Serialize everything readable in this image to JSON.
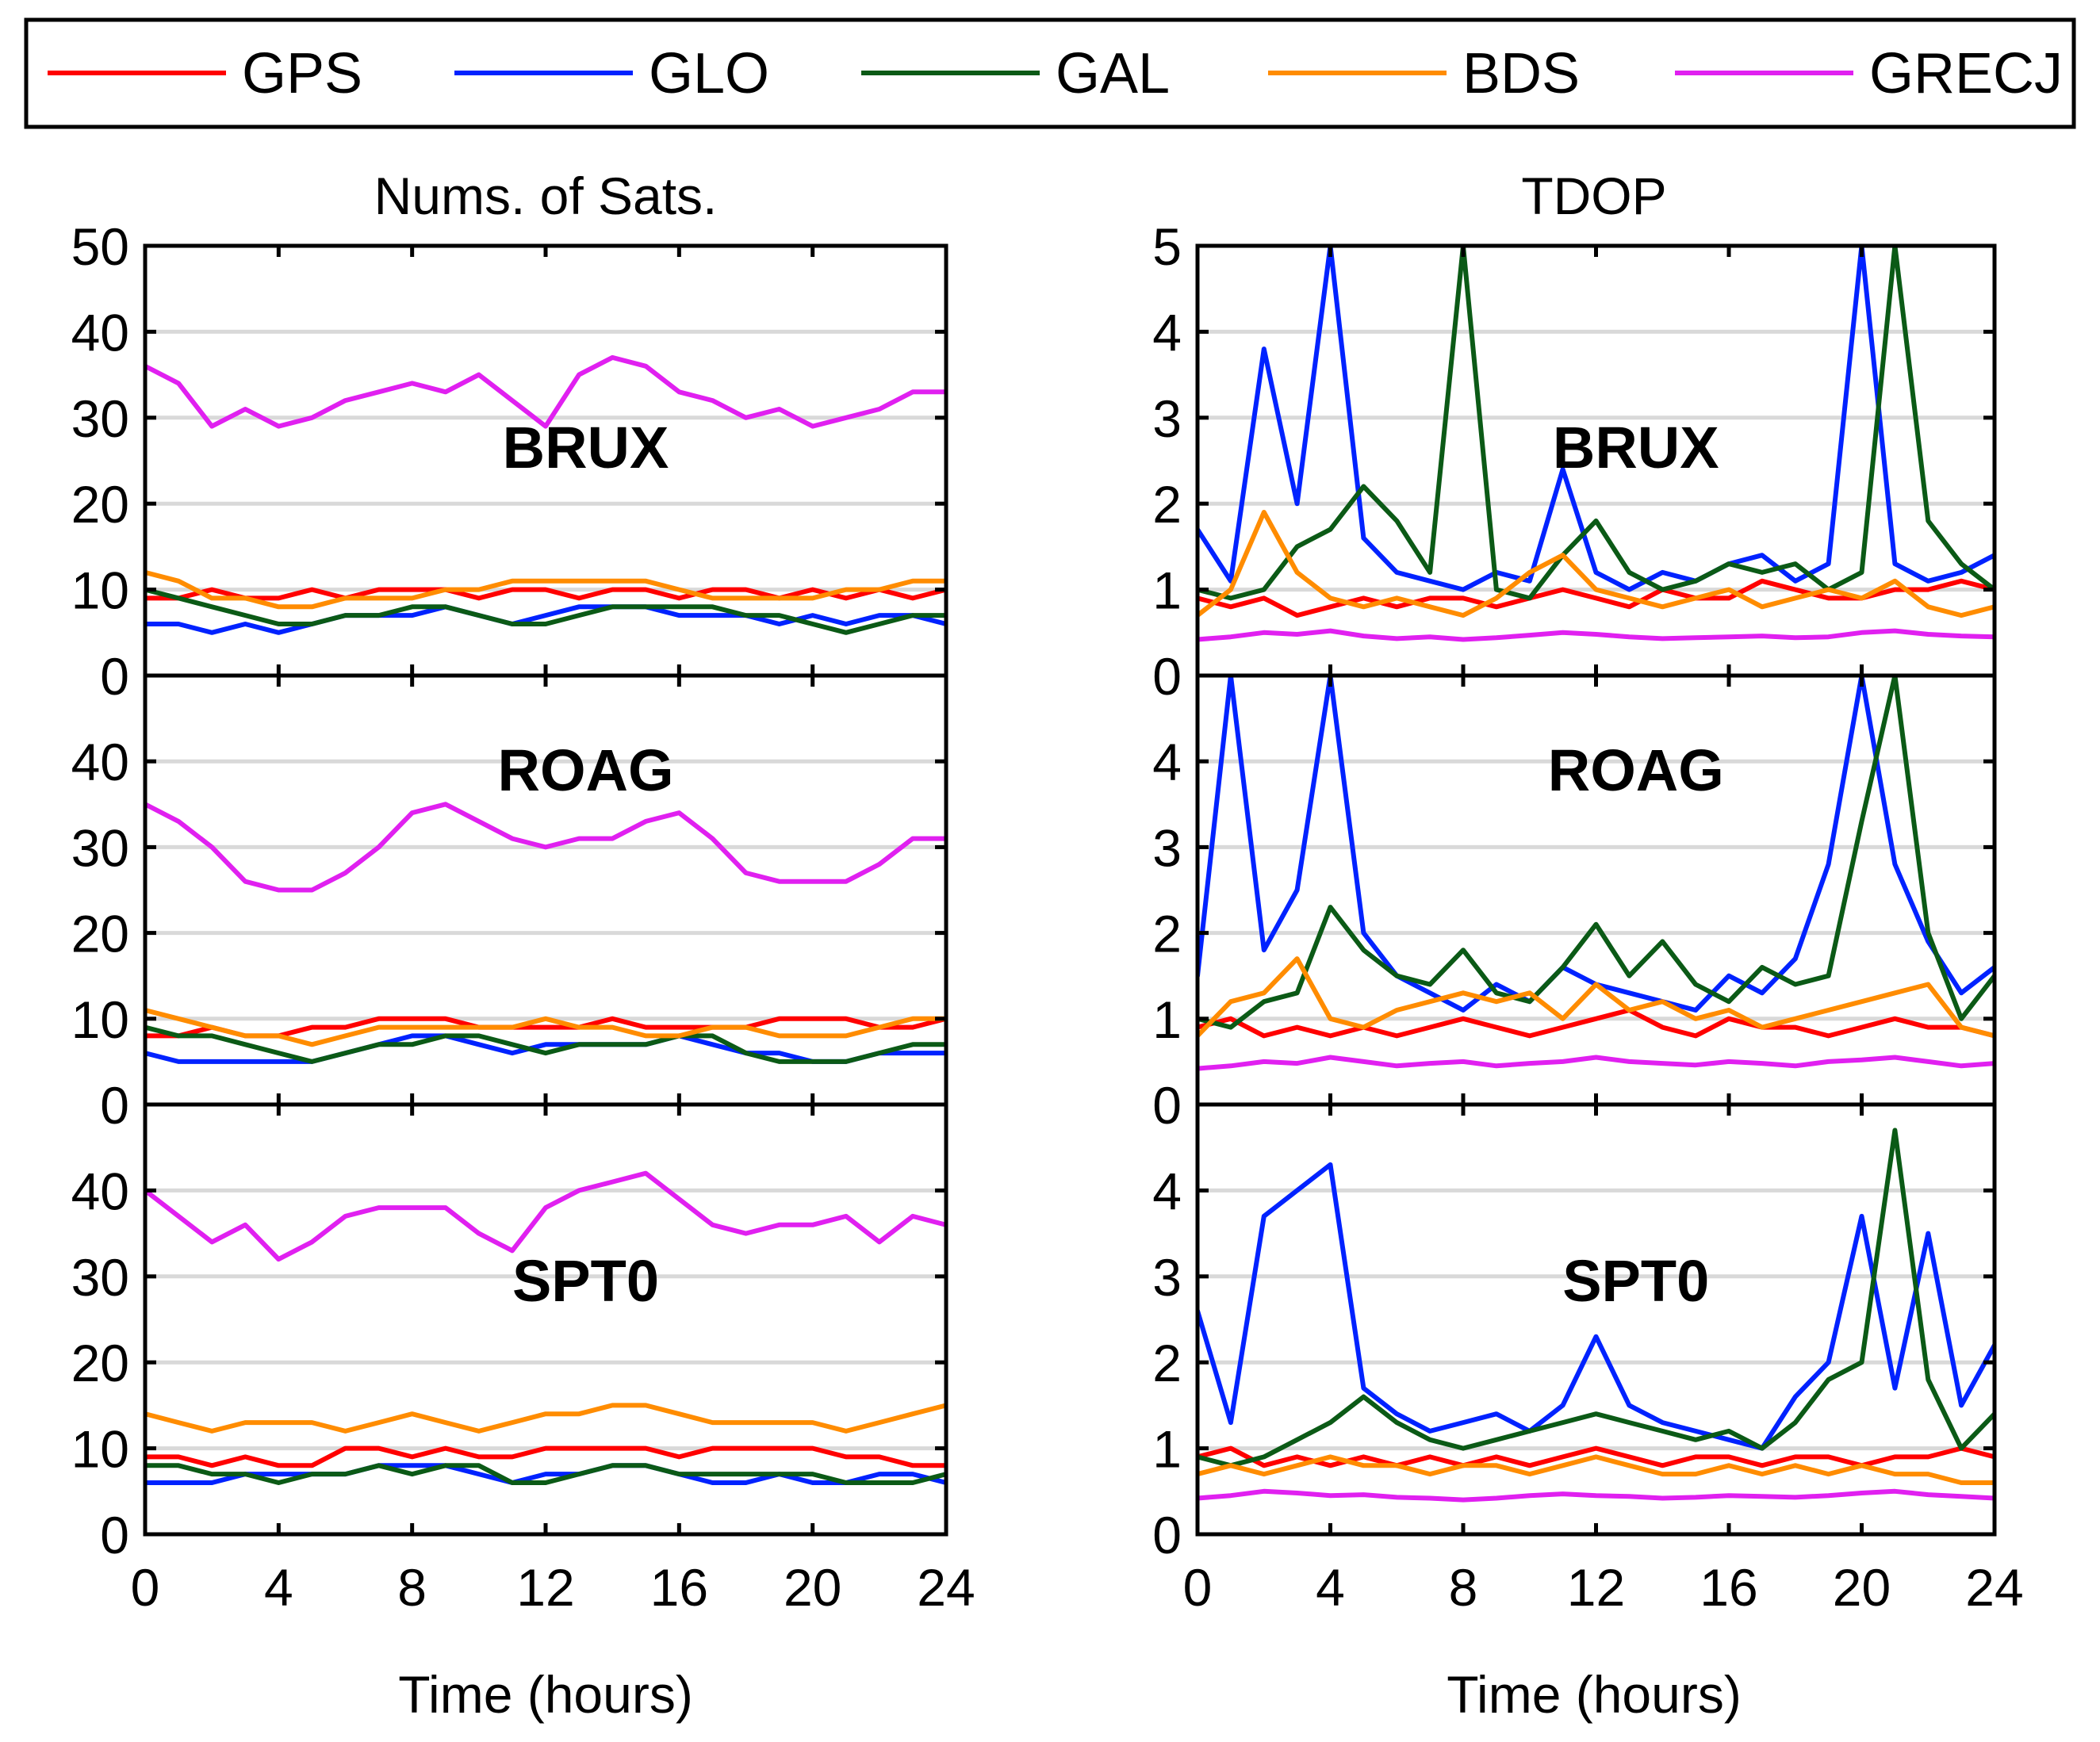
{
  "legend": [
    {
      "name": "GPS",
      "color": "#ff0000"
    },
    {
      "name": "GLO",
      "color": "#0022ff"
    },
    {
      "name": "GAL",
      "color": "#0b5a16"
    },
    {
      "name": "BDS",
      "color": "#ff8c00"
    },
    {
      "name": "GRECJ",
      "color": "#e020f0"
    }
  ],
  "columns": {
    "left_title": "Nums. of Sats.",
    "right_title": "TDOP",
    "xlabel": "Time (hours)"
  },
  "chart_data": [
    {
      "type": "line",
      "title": "Nums. of Sats.",
      "station": "BRUX",
      "xlabel": "",
      "ylabel": "",
      "xlim": [
        0,
        24
      ],
      "ylim": [
        0,
        50
      ],
      "xticks": [
        0,
        4,
        8,
        12,
        16,
        20,
        24
      ],
      "yticks": [
        0,
        10,
        20,
        30,
        40,
        50
      ],
      "x": [
        0,
        1,
        2,
        3,
        4,
        5,
        6,
        7,
        8,
        9,
        10,
        11,
        12,
        13,
        14,
        15,
        16,
        17,
        18,
        19,
        20,
        21,
        22,
        23,
        24
      ],
      "series": [
        {
          "name": "GPS",
          "values": [
            9,
            9,
            10,
            9,
            9,
            10,
            9,
            10,
            10,
            10,
            9,
            10,
            10,
            9,
            10,
            10,
            9,
            10,
            10,
            9,
            10,
            9,
            10,
            9,
            10
          ]
        },
        {
          "name": "GLO",
          "values": [
            6,
            6,
            5,
            6,
            5,
            6,
            7,
            7,
            7,
            8,
            7,
            6,
            7,
            8,
            8,
            8,
            7,
            7,
            7,
            6,
            7,
            6,
            7,
            7,
            6
          ]
        },
        {
          "name": "GAL",
          "values": [
            10,
            9,
            8,
            7,
            6,
            6,
            7,
            7,
            8,
            8,
            7,
            6,
            6,
            7,
            8,
            8,
            8,
            8,
            7,
            7,
            6,
            5,
            6,
            7,
            7
          ]
        },
        {
          "name": "BDS",
          "values": [
            12,
            11,
            9,
            9,
            8,
            8,
            9,
            9,
            9,
            10,
            10,
            11,
            11,
            11,
            11,
            11,
            10,
            9,
            9,
            9,
            9,
            10,
            10,
            11,
            11
          ]
        },
        {
          "name": "GRECJ",
          "values": [
            36,
            34,
            29,
            31,
            29,
            30,
            32,
            33,
            34,
            33,
            35,
            32,
            29,
            35,
            37,
            36,
            33,
            32,
            30,
            31,
            29,
            30,
            31,
            33,
            33
          ]
        }
      ]
    },
    {
      "type": "line",
      "title": "Nums. of Sats.",
      "station": "ROAG",
      "xlabel": "",
      "ylabel": "",
      "xlim": [
        0,
        24
      ],
      "ylim": [
        0,
        50
      ],
      "xticks": [
        0,
        4,
        8,
        12,
        16,
        20,
        24
      ],
      "yticks": [
        0,
        10,
        20,
        30,
        40
      ],
      "x": [
        0,
        1,
        2,
        3,
        4,
        5,
        6,
        7,
        8,
        9,
        10,
        11,
        12,
        13,
        14,
        15,
        16,
        17,
        18,
        19,
        20,
        21,
        22,
        23,
        24
      ],
      "series": [
        {
          "name": "GPS",
          "values": [
            8,
            8,
            9,
            8,
            8,
            9,
            9,
            10,
            10,
            10,
            9,
            9,
            9,
            9,
            10,
            9,
            9,
            9,
            9,
            10,
            10,
            10,
            9,
            9,
            10
          ]
        },
        {
          "name": "GLO",
          "values": [
            6,
            5,
            5,
            5,
            5,
            5,
            6,
            7,
            8,
            8,
            7,
            6,
            7,
            7,
            7,
            7,
            8,
            7,
            6,
            6,
            5,
            5,
            6,
            6,
            6
          ]
        },
        {
          "name": "GAL",
          "values": [
            9,
            8,
            8,
            7,
            6,
            5,
            6,
            7,
            7,
            8,
            8,
            7,
            6,
            7,
            7,
            7,
            8,
            8,
            6,
            5,
            5,
            5,
            6,
            7,
            7
          ]
        },
        {
          "name": "BDS",
          "values": [
            11,
            10,
            9,
            8,
            8,
            7,
            8,
            9,
            9,
            9,
            9,
            9,
            10,
            9,
            9,
            8,
            8,
            9,
            9,
            8,
            8,
            8,
            9,
            10,
            10
          ]
        },
        {
          "name": "GRECJ",
          "values": [
            35,
            33,
            30,
            26,
            25,
            25,
            27,
            30,
            34,
            35,
            33,
            31,
            30,
            31,
            31,
            33,
            34,
            31,
            27,
            26,
            26,
            26,
            28,
            31,
            31
          ]
        }
      ]
    },
    {
      "type": "line",
      "title": "Nums. of Sats.",
      "station": "SPT0",
      "xlabel": "Time (hours)",
      "ylabel": "",
      "xlim": [
        0,
        24
      ],
      "ylim": [
        0,
        50
      ],
      "xticks": [
        0,
        4,
        8,
        12,
        16,
        20,
        24
      ],
      "yticks": [
        0,
        10,
        20,
        30,
        40
      ],
      "x": [
        0,
        1,
        2,
        3,
        4,
        5,
        6,
        7,
        8,
        9,
        10,
        11,
        12,
        13,
        14,
        15,
        16,
        17,
        18,
        19,
        20,
        21,
        22,
        23,
        24
      ],
      "series": [
        {
          "name": "GPS",
          "values": [
            9,
            9,
            8,
            9,
            8,
            8,
            10,
            10,
            9,
            10,
            9,
            9,
            10,
            10,
            10,
            10,
            9,
            10,
            10,
            10,
            10,
            9,
            9,
            8,
            8
          ]
        },
        {
          "name": "GLO",
          "values": [
            6,
            6,
            6,
            7,
            7,
            7,
            7,
            8,
            8,
            8,
            7,
            6,
            7,
            7,
            8,
            8,
            7,
            6,
            6,
            7,
            6,
            6,
            7,
            7,
            6
          ]
        },
        {
          "name": "GAL",
          "values": [
            8,
            8,
            7,
            7,
            6,
            7,
            7,
            8,
            7,
            8,
            8,
            6,
            6,
            7,
            8,
            8,
            7,
            7,
            7,
            7,
            7,
            6,
            6,
            6,
            7
          ]
        },
        {
          "name": "BDS",
          "values": [
            14,
            13,
            12,
            13,
            13,
            13,
            12,
            13,
            14,
            13,
            12,
            13,
            14,
            14,
            15,
            15,
            14,
            13,
            13,
            13,
            13,
            12,
            13,
            14,
            15
          ]
        },
        {
          "name": "GRECJ",
          "values": [
            40,
            37,
            34,
            36,
            32,
            34,
            37,
            38,
            38,
            38,
            35,
            33,
            38,
            40,
            41,
            42,
            39,
            36,
            35,
            36,
            36,
            37,
            34,
            37,
            36
          ]
        }
      ]
    },
    {
      "type": "line",
      "title": "TDOP",
      "station": "BRUX",
      "xlabel": "",
      "ylabel": "",
      "xlim": [
        0,
        24
      ],
      "ylim": [
        0,
        5
      ],
      "xticks": [
        0,
        4,
        8,
        12,
        16,
        20,
        24
      ],
      "yticks": [
        0,
        1,
        2,
        3,
        4,
        5
      ],
      "x": [
        0,
        1,
        2,
        3,
        4,
        5,
        6,
        7,
        8,
        9,
        10,
        11,
        12,
        13,
        14,
        15,
        16,
        17,
        18,
        19,
        20,
        21,
        22,
        23,
        24
      ],
      "series": [
        {
          "name": "GPS",
          "values": [
            0.9,
            0.8,
            0.9,
            0.7,
            0.8,
            0.9,
            0.8,
            0.9,
            0.9,
            0.8,
            0.9,
            1.0,
            0.9,
            0.8,
            1.0,
            0.9,
            0.9,
            1.1,
            1.0,
            0.9,
            0.9,
            1.0,
            1.0,
            1.1,
            1.0
          ]
        },
        {
          "name": "GLO",
          "values": [
            1.7,
            1.1,
            3.8,
            2.0,
            5.0,
            1.6,
            1.2,
            1.1,
            1.0,
            1.2,
            1.1,
            2.4,
            1.2,
            1.0,
            1.2,
            1.1,
            1.3,
            1.4,
            1.1,
            1.3,
            5.0,
            1.3,
            1.1,
            1.2,
            1.4
          ]
        },
        {
          "name": "GAL",
          "values": [
            1.0,
            0.9,
            1.0,
            1.5,
            1.7,
            2.2,
            1.8,
            1.2,
            5.0,
            1.0,
            0.9,
            1.4,
            1.8,
            1.2,
            1.0,
            1.1,
            1.3,
            1.2,
            1.3,
            1.0,
            1.2,
            5.0,
            1.8,
            1.3,
            1.0
          ]
        },
        {
          "name": "BDS",
          "values": [
            0.7,
            1.0,
            1.9,
            1.2,
            0.9,
            0.8,
            0.9,
            0.8,
            0.7,
            0.9,
            1.2,
            1.4,
            1.0,
            0.9,
            0.8,
            0.9,
            1.0,
            0.8,
            0.9,
            1.0,
            0.9,
            1.1,
            0.8,
            0.7,
            0.8
          ]
        },
        {
          "name": "GRECJ",
          "values": [
            0.42,
            0.45,
            0.5,
            0.48,
            0.52,
            0.46,
            0.43,
            0.45,
            0.42,
            0.44,
            0.47,
            0.5,
            0.48,
            0.45,
            0.43,
            0.44,
            0.45,
            0.46,
            0.44,
            0.45,
            0.5,
            0.52,
            0.48,
            0.46,
            0.45
          ]
        }
      ]
    },
    {
      "type": "line",
      "title": "TDOP",
      "station": "ROAG",
      "xlabel": "",
      "ylabel": "",
      "xlim": [
        0,
        24
      ],
      "ylim": [
        0,
        5
      ],
      "xticks": [
        0,
        4,
        8,
        12,
        16,
        20,
        24
      ],
      "yticks": [
        0,
        1,
        2,
        3,
        4
      ],
      "x": [
        0,
        1,
        2,
        3,
        4,
        5,
        6,
        7,
        8,
        9,
        10,
        11,
        12,
        13,
        14,
        15,
        16,
        17,
        18,
        19,
        20,
        21,
        22,
        23,
        24
      ],
      "series": [
        {
          "name": "GPS",
          "values": [
            0.9,
            1.0,
            0.8,
            0.9,
            0.8,
            0.9,
            0.8,
            0.9,
            1.0,
            0.9,
            0.8,
            0.9,
            1.0,
            1.1,
            0.9,
            0.8,
            1.0,
            0.9,
            0.9,
            0.8,
            0.9,
            1.0,
            0.9,
            0.9,
            0.8
          ]
        },
        {
          "name": "GLO",
          "values": [
            1.5,
            5.0,
            1.8,
            2.5,
            5.0,
            2.0,
            1.5,
            1.3,
            1.1,
            1.4,
            1.2,
            1.6,
            1.4,
            1.3,
            1.2,
            1.1,
            1.5,
            1.3,
            1.7,
            2.8,
            5.0,
            2.8,
            1.9,
            1.3,
            1.6
          ]
        },
        {
          "name": "GAL",
          "values": [
            1.0,
            0.9,
            1.2,
            1.3,
            2.3,
            1.8,
            1.5,
            1.4,
            1.8,
            1.3,
            1.2,
            1.6,
            2.1,
            1.5,
            1.9,
            1.4,
            1.2,
            1.6,
            1.4,
            1.5,
            3.3,
            5.0,
            2.0,
            1.0,
            1.5
          ]
        },
        {
          "name": "BDS",
          "values": [
            0.8,
            1.2,
            1.3,
            1.7,
            1.0,
            0.9,
            1.1,
            1.2,
            1.3,
            1.2,
            1.3,
            1.0,
            1.4,
            1.1,
            1.2,
            1.0,
            1.1,
            0.9,
            1.0,
            1.1,
            1.2,
            1.3,
            1.4,
            0.9,
            0.8
          ]
        },
        {
          "name": "GRECJ",
          "values": [
            0.42,
            0.45,
            0.5,
            0.48,
            0.55,
            0.5,
            0.45,
            0.48,
            0.5,
            0.45,
            0.48,
            0.5,
            0.55,
            0.5,
            0.48,
            0.46,
            0.5,
            0.48,
            0.45,
            0.5,
            0.52,
            0.55,
            0.5,
            0.45,
            0.48
          ]
        }
      ]
    },
    {
      "type": "line",
      "title": "TDOP",
      "station": "SPT0",
      "xlabel": "Time (hours)",
      "ylabel": "",
      "xlim": [
        0,
        24
      ],
      "ylim": [
        0,
        5
      ],
      "xticks": [
        0,
        4,
        8,
        12,
        16,
        20,
        24
      ],
      "yticks": [
        0,
        1,
        2,
        3,
        4
      ],
      "x": [
        0,
        1,
        2,
        3,
        4,
        5,
        6,
        7,
        8,
        9,
        10,
        11,
        12,
        13,
        14,
        15,
        16,
        17,
        18,
        19,
        20,
        21,
        22,
        23,
        24
      ],
      "series": [
        {
          "name": "GPS",
          "values": [
            0.9,
            1.0,
            0.8,
            0.9,
            0.8,
            0.9,
            0.8,
            0.9,
            0.8,
            0.9,
            0.8,
            0.9,
            1.0,
            0.9,
            0.8,
            0.9,
            0.9,
            0.8,
            0.9,
            0.9,
            0.8,
            0.9,
            0.9,
            1.0,
            0.9
          ]
        },
        {
          "name": "GLO",
          "values": [
            2.6,
            1.3,
            3.7,
            4.0,
            4.3,
            1.7,
            1.4,
            1.2,
            1.3,
            1.4,
            1.2,
            1.5,
            2.3,
            1.5,
            1.3,
            1.2,
            1.1,
            1.0,
            1.6,
            2.0,
            3.7,
            1.7,
            3.5,
            1.5,
            2.2
          ]
        },
        {
          "name": "GAL",
          "values": [
            0.9,
            0.8,
            0.9,
            1.1,
            1.3,
            1.6,
            1.3,
            1.1,
            1.0,
            1.1,
            1.2,
            1.3,
            1.4,
            1.3,
            1.2,
            1.1,
            1.2,
            1.0,
            1.3,
            1.8,
            2.0,
            4.7,
            1.8,
            1.0,
            1.4
          ]
        },
        {
          "name": "BDS",
          "values": [
            0.7,
            0.8,
            0.7,
            0.8,
            0.9,
            0.8,
            0.8,
            0.7,
            0.8,
            0.8,
            0.7,
            0.8,
            0.9,
            0.8,
            0.7,
            0.7,
            0.8,
            0.7,
            0.8,
            0.7,
            0.8,
            0.7,
            0.7,
            0.6,
            0.6
          ]
        },
        {
          "name": "GRECJ",
          "values": [
            0.42,
            0.45,
            0.5,
            0.48,
            0.45,
            0.46,
            0.43,
            0.42,
            0.4,
            0.42,
            0.45,
            0.47,
            0.45,
            0.44,
            0.42,
            0.43,
            0.45,
            0.44,
            0.43,
            0.45,
            0.48,
            0.5,
            0.46,
            0.44,
            0.42
          ]
        }
      ]
    }
  ]
}
